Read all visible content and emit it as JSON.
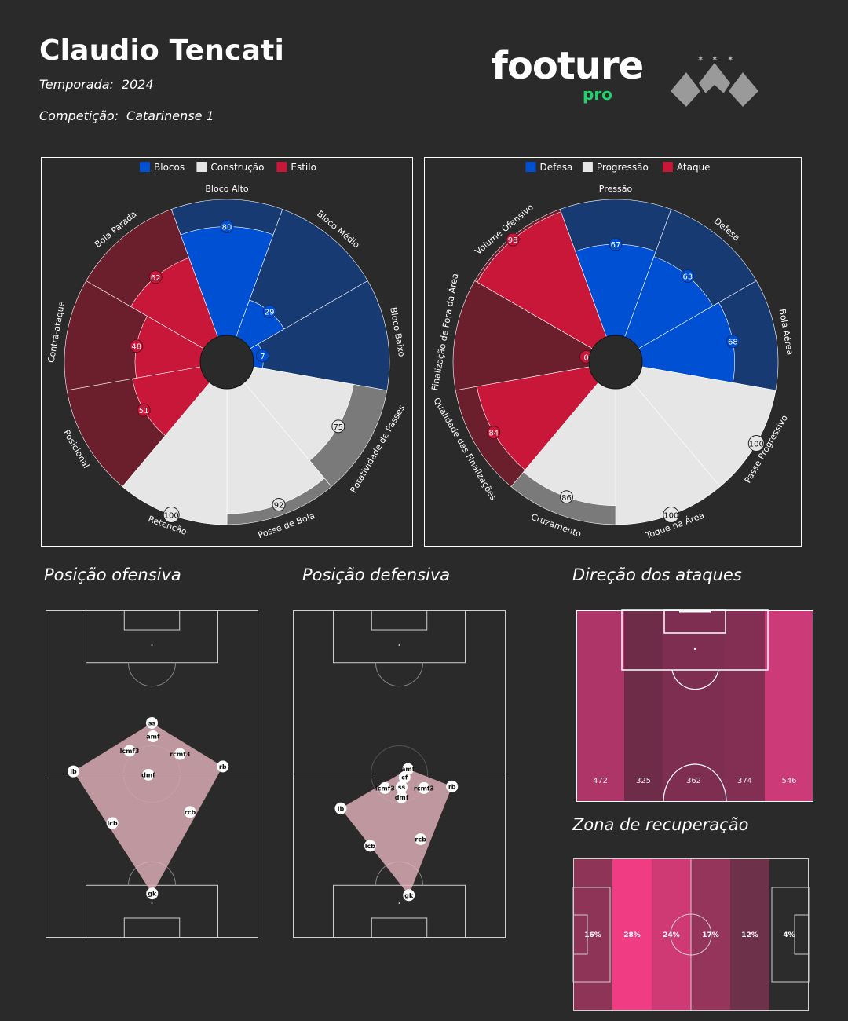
{
  "header": {
    "name": "Claudio Tencati",
    "season_label": "Temporada:",
    "season_value": "2024",
    "competition_label": "Competição:",
    "competition_value": "Catarinense 1",
    "brand": "footure",
    "brand_sub": "pro"
  },
  "colors": {
    "background": "#2a2a2a",
    "blue": "#0050d4",
    "blue_dark": "#183a72",
    "red": "#c9173a",
    "red_dark": "#6b1f2d",
    "grey": "#e6e6e6",
    "grey_dark": "#7a7a7a",
    "brand_green": "#22d36b"
  },
  "titles": {
    "off_position": "Posição ofensiva",
    "def_position": "Posição defensiva",
    "attack_direction": "Direção dos ataques",
    "recovery_zone": "Zona de recuperação"
  },
  "chart_data": [
    {
      "type": "polar-bar",
      "id": "style-radar",
      "legend": [
        "Blocos",
        "Construção",
        "Estilo"
      ],
      "legend_placement": "top-center",
      "categories": [
        "Bloco Alto",
        "Bloco Médio",
        "Bloco Baixo",
        "Rotatividade de Passes",
        "Posse de Bola",
        "Retenção",
        "Posicional",
        "Contra-ataque",
        "Bola Parada"
      ],
      "groups": [
        "Blocos",
        "Blocos",
        "Blocos",
        "Construção",
        "Construção",
        "Construção",
        "Estilo",
        "Estilo",
        "Estilo"
      ],
      "values": [
        80,
        29,
        7,
        75,
        92,
        100,
        51,
        48,
        62
      ],
      "max": 100
    },
    {
      "type": "polar-bar",
      "id": "phase-radar",
      "legend": [
        "Defesa",
        "Progressão",
        "Ataque"
      ],
      "legend_placement": "top-center",
      "categories": [
        "Pressão",
        "Defesa",
        "Bola Aérea",
        "Passe Progressivo",
        "Toque na Área",
        "Cruzamento",
        "Qualidade das Finalizações",
        "Finalização de Fora da Área",
        "Volume Ofensivo"
      ],
      "groups": [
        "Defesa",
        "Defesa",
        "Defesa",
        "Progressão",
        "Progressão",
        "Progressão",
        "Ataque",
        "Ataque",
        "Ataque"
      ],
      "values": [
        67,
        63,
        68,
        100,
        100,
        86,
        84,
        0,
        98
      ],
      "max": 100
    },
    {
      "type": "scatter",
      "id": "offensive-position",
      "players": [
        {
          "label": "ss",
          "x": 50,
          "y": 65.6
        },
        {
          "label": "amf",
          "x": 50.5,
          "y": 61.5
        },
        {
          "label": "lcmf3",
          "x": 39.5,
          "y": 57.1
        },
        {
          "label": "rcmf3",
          "x": 63.2,
          "y": 56.1
        },
        {
          "label": "lb",
          "x": 13.1,
          "y": 50.8
        },
        {
          "label": "rb",
          "x": 83.3,
          "y": 52.3
        },
        {
          "label": "dmf",
          "x": 48.3,
          "y": 49.8
        },
        {
          "label": "rcb",
          "x": 67.9,
          "y": 38.4
        },
        {
          "label": "lcb",
          "x": 31.4,
          "y": 35.0
        },
        {
          "label": "gk",
          "x": 50.1,
          "y": 13.5
        }
      ]
    },
    {
      "type": "scatter",
      "id": "defensive-position",
      "players": [
        {
          "label": "amf",
          "x": 54.1,
          "y": 51.5
        },
        {
          "label": "cf",
          "x": 52.5,
          "y": 49.0
        },
        {
          "label": "lcmf3",
          "x": 43.3,
          "y": 45.7
        },
        {
          "label": "ss",
          "x": 51.1,
          "y": 46.0
        },
        {
          "label": "rcmf3",
          "x": 61.6,
          "y": 45.7
        },
        {
          "label": "rb",
          "x": 74.8,
          "y": 46.2
        },
        {
          "label": "dmf",
          "x": 51.1,
          "y": 42.9
        },
        {
          "label": "lb",
          "x": 22.5,
          "y": 39.5
        },
        {
          "label": "rcb",
          "x": 60.0,
          "y": 30.1
        },
        {
          "label": "lcb",
          "x": 36.3,
          "y": 28.1
        },
        {
          "label": "gk",
          "x": 54.5,
          "y": 13.0
        }
      ]
    },
    {
      "type": "heatmap",
      "id": "attack-direction",
      "categories": [
        "left",
        "left-center",
        "center",
        "right-center",
        "right"
      ],
      "values": [
        472,
        325,
        362,
        374,
        546
      ],
      "labels": [
        "472",
        "325",
        "362",
        "374",
        "546"
      ]
    },
    {
      "type": "heatmap",
      "id": "recovery-zone",
      "categories": [
        "zone1",
        "zone2",
        "zone3",
        "zone4",
        "zone5",
        "zone6"
      ],
      "values": [
        16,
        28,
        24,
        17,
        12,
        4
      ],
      "labels": [
        "16%",
        "28%",
        "24%",
        "17%",
        "12%",
        "4%"
      ]
    }
  ]
}
